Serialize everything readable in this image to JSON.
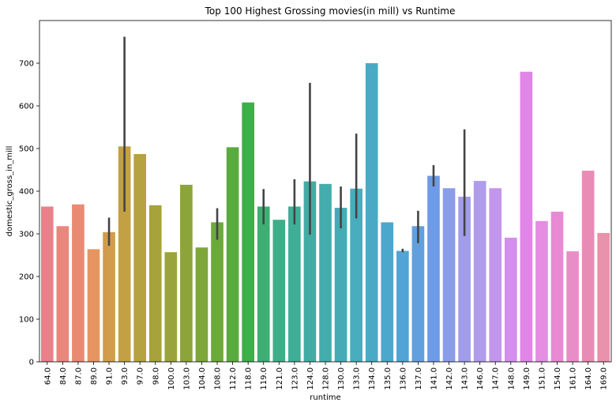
{
  "chart_data": {
    "type": "bar",
    "title": "Top 100 Highest Grossing movies(in mill) vs Runtime",
    "xlabel": "runtime",
    "ylabel": "domestic_gross_in_mill",
    "ylim": [
      0,
      800
    ],
    "yticks": [
      0,
      100,
      200,
      300,
      400,
      500,
      600,
      700
    ],
    "grid": false,
    "legend": "none",
    "categories": [
      "64.0",
      "84.0",
      "87.0",
      "89.0",
      "91.0",
      "93.0",
      "97.0",
      "98.0",
      "100.0",
      "103.0",
      "104.0",
      "108.0",
      "112.0",
      "118.0",
      "119.0",
      "121.0",
      "123.0",
      "124.0",
      "128.0",
      "130.0",
      "133.0",
      "134.0",
      "135.0",
      "136.0",
      "137.0",
      "141.0",
      "142.0",
      "143.0",
      "146.0",
      "147.0",
      "148.0",
      "149.0",
      "151.0",
      "154.0",
      "161.0",
      "164.0",
      "169.0"
    ],
    "values": [
      364,
      318,
      369,
      264,
      304,
      505,
      487,
      367,
      257,
      415,
      268,
      327,
      503,
      608,
      364,
      333,
      364,
      423,
      417,
      361,
      406,
      700,
      327,
      260,
      318,
      436,
      407,
      387,
      424,
      407,
      291,
      680,
      330,
      352,
      259,
      448,
      302
    ],
    "error_bars": [
      null,
      null,
      null,
      null,
      [
        272,
        338
      ],
      [
        352,
        762
      ],
      null,
      null,
      null,
      null,
      null,
      [
        286,
        360
      ],
      null,
      null,
      [
        322,
        405
      ],
      null,
      [
        322,
        428
      ],
      [
        298,
        654
      ],
      null,
      [
        313,
        411
      ],
      [
        336,
        535
      ],
      null,
      null,
      [
        257,
        265
      ],
      [
        278,
        354
      ],
      [
        411,
        461
      ],
      null,
      [
        295,
        545
      ],
      null,
      null,
      null,
      null,
      null,
      null,
      null,
      null,
      null
    ],
    "colors": [
      "#e8818a",
      "#e9877c",
      "#e98a72",
      "#e59660",
      "#d19c4b",
      "#c3a043",
      "#b5a240",
      "#a7a23c",
      "#9ba43c",
      "#8ca43a",
      "#7da63b",
      "#6ca93b",
      "#5aab3d",
      "#3eae48",
      "#3eaf74",
      "#3eae88",
      "#40ad97",
      "#41aca4",
      "#43acac",
      "#45acb5",
      "#48adbe",
      "#4aaac5",
      "#4ba8cc",
      "#52a4d5",
      "#61a0dc",
      "#6e9be7",
      "#8a9de8",
      "#a19deb",
      "#b09ceb",
      "#c296ea",
      "#d38feb",
      "#e185e6",
      "#e48de2",
      "#e989d3",
      "#e98dc6",
      "#e88cb5",
      "#e892ab"
    ]
  }
}
